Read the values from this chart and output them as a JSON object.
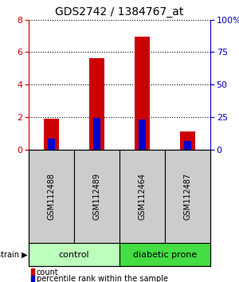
{
  "title": "GDS2742 / 1384767_at",
  "samples": [
    "GSM112488",
    "GSM112489",
    "GSM112464",
    "GSM112487"
  ],
  "count_values": [
    1.9,
    5.65,
    6.95,
    1.1
  ],
  "percentile_values": [
    8.5,
    24.5,
    23.0,
    6.5
  ],
  "bar_width": 0.35,
  "blue_bar_width": 0.15,
  "left_ylim": [
    0,
    8
  ],
  "right_ylim": [
    0,
    100
  ],
  "left_yticks": [
    0,
    2,
    4,
    6,
    8
  ],
  "right_yticks": [
    0,
    25,
    50,
    75,
    100
  ],
  "right_yticklabels": [
    "0",
    "25",
    "50",
    "75",
    "100%"
  ],
  "left_color": "#cc0000",
  "right_color": "#0000cc",
  "groups": [
    {
      "label": "control",
      "indices": [
        0,
        1
      ],
      "color": "#bbffbb"
    },
    {
      "label": "diabetic prone",
      "indices": [
        2,
        3
      ],
      "color": "#44dd44"
    }
  ],
  "legend_count_label": "count",
  "legend_percentile_label": "percentile rank within the sample",
  "background_color": "#ffffff",
  "sample_box_color": "#cccccc",
  "title_fontsize": 10
}
